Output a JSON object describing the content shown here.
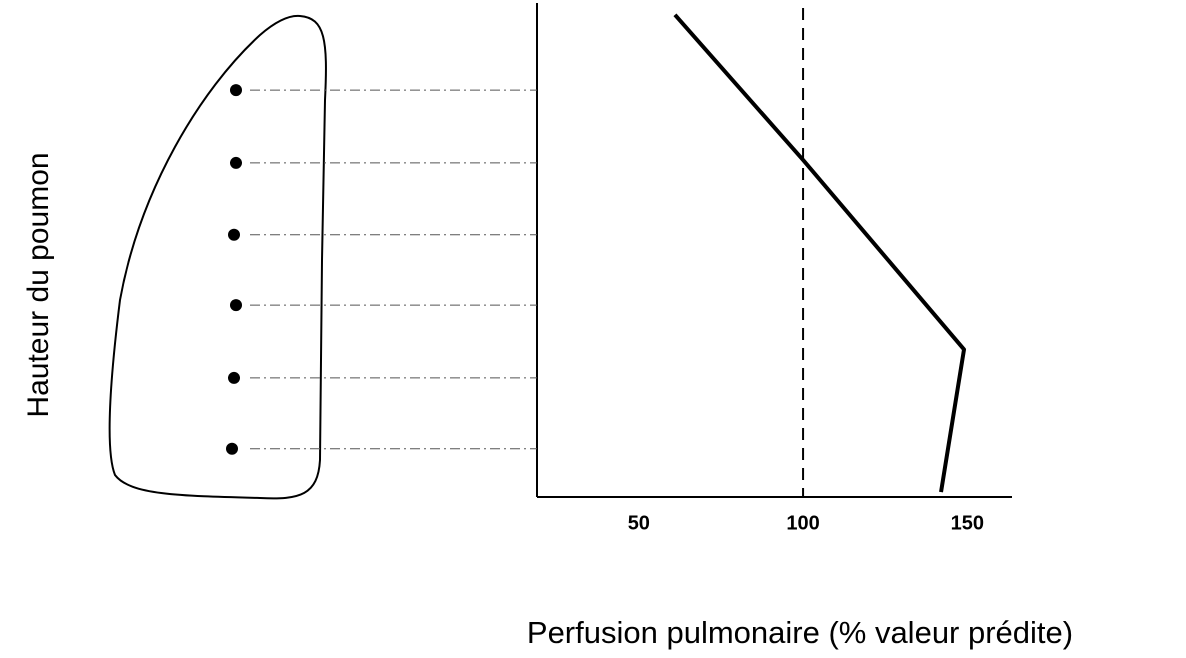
{
  "chart_data": {
    "type": "line",
    "y_axis_label": "Hauteur du poumon",
    "x_axis_label": "Perfusion pulmonaire (% valeur prédite)",
    "xlim": [
      19,
      163
    ],
    "xticks": [
      50,
      100,
      150
    ],
    "ylim": [
      0,
      100
    ],
    "reference_x": 100,
    "levels": [
      82.7,
      67.9,
      53.3,
      39.0,
      24.2,
      9.8
    ],
    "series": [
      {
        "color": "#000000",
        "x": [
          61,
          100,
          149,
          142
        ],
        "values": [
          98,
          68.5,
          30,
          1
        ]
      }
    ]
  }
}
